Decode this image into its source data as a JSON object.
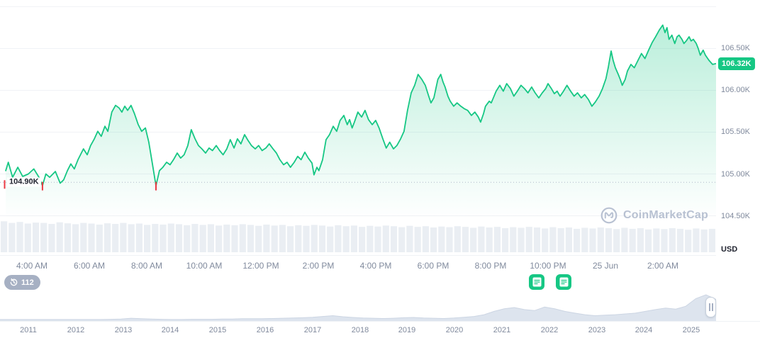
{
  "colors": {
    "accent_green": "#16c784",
    "alert_red": "#ea3943",
    "axis_text": "#808a9d",
    "dark_text": "#222531",
    "grid": "#f0f2f6",
    "dotted_line": "#aeb7c8",
    "volume_fill": "#eaeef3",
    "timeline_fill": "#dde4ee",
    "timeline_stroke": "#ccd5e3"
  },
  "y_axis": {
    "unit_label": "USD",
    "ticks": [
      {
        "price": 106.5,
        "label": "106.50K"
      },
      {
        "price": 106.0,
        "label": "106.00K"
      },
      {
        "price": 105.5,
        "label": "105.50K"
      },
      {
        "price": 105.0,
        "label": "105.00K"
      },
      {
        "price": 104.5,
        "label": "104.50K"
      }
    ],
    "grid_extra": [
      107.0
    ],
    "current_price": {
      "label": "106.32K",
      "value": 106.32
    }
  },
  "low_line": {
    "price": 104.9,
    "label": "104.90K"
  },
  "x_axis": {
    "ticks": [
      {
        "t": 0,
        "label": "4:00 AM"
      },
      {
        "t": 2,
        "label": "6:00 AM"
      },
      {
        "t": 4,
        "label": "8:00 AM"
      },
      {
        "t": 6,
        "label": "10:00 AM"
      },
      {
        "t": 8,
        "label": "12:00 PM"
      },
      {
        "t": 10,
        "label": "2:00 PM"
      },
      {
        "t": 12,
        "label": "4:00 PM"
      },
      {
        "t": 14,
        "label": "6:00 PM"
      },
      {
        "t": 16,
        "label": "8:00 PM"
      },
      {
        "t": 18,
        "label": "10:00 PM"
      },
      {
        "t": 20,
        "label": "25 Jun"
      },
      {
        "t": 22,
        "label": "2:00 AM"
      }
    ]
  },
  "history_badge": {
    "count": "112"
  },
  "event_markers": [
    {
      "t": 17.6
    },
    {
      "t": 18.55
    }
  ],
  "watermark": {
    "text": "CoinMarketCap"
  },
  "chart_data": [
    {
      "type": "line",
      "name": "price_24h",
      "ylabel": "USD",
      "x_unit": "hours since 4:00 AM",
      "t_domain": [
        -1.11,
        23.86
      ],
      "ylim": [
        104.03,
        107.08
      ],
      "unit": "K USD",
      "points": [
        [
          -0.91,
          105.04
        ],
        [
          -0.82,
          105.14
        ],
        [
          -0.67,
          104.96
        ],
        [
          -0.49,
          105.08
        ],
        [
          -0.32,
          104.97
        ],
        [
          -0.12,
          105.0
        ],
        [
          0.07,
          105.06
        ],
        [
          0.25,
          104.96
        ],
        [
          0.37,
          104.86
        ],
        [
          0.49,
          105.0
        ],
        [
          0.62,
          104.96
        ],
        [
          0.82,
          105.03
        ],
        [
          0.99,
          104.89
        ],
        [
          1.11,
          104.93
        ],
        [
          1.24,
          105.04
        ],
        [
          1.36,
          105.12
        ],
        [
          1.48,
          105.06
        ],
        [
          1.61,
          105.17
        ],
        [
          1.8,
          105.3
        ],
        [
          1.93,
          105.23
        ],
        [
          2.05,
          105.34
        ],
        [
          2.18,
          105.42
        ],
        [
          2.3,
          105.51
        ],
        [
          2.42,
          105.45
        ],
        [
          2.55,
          105.57
        ],
        [
          2.65,
          105.51
        ],
        [
          2.79,
          105.74
        ],
        [
          2.92,
          105.82
        ],
        [
          3.04,
          105.79
        ],
        [
          3.14,
          105.74
        ],
        [
          3.24,
          105.81
        ],
        [
          3.34,
          105.76
        ],
        [
          3.46,
          105.82
        ],
        [
          3.58,
          105.72
        ],
        [
          3.71,
          105.59
        ],
        [
          3.83,
          105.51
        ],
        [
          3.96,
          105.55
        ],
        [
          4.08,
          105.38
        ],
        [
          4.2,
          105.13
        ],
        [
          4.33,
          104.86
        ],
        [
          4.45,
          105.04
        ],
        [
          4.57,
          105.08
        ],
        [
          4.7,
          105.14
        ],
        [
          4.82,
          105.11
        ],
        [
          4.94,
          105.17
        ],
        [
          5.07,
          105.25
        ],
        [
          5.19,
          105.19
        ],
        [
          5.31,
          105.23
        ],
        [
          5.44,
          105.34
        ],
        [
          5.56,
          105.53
        ],
        [
          5.69,
          105.42
        ],
        [
          5.81,
          105.34
        ],
        [
          5.93,
          105.3
        ],
        [
          6.06,
          105.25
        ],
        [
          6.18,
          105.31
        ],
        [
          6.3,
          105.28
        ],
        [
          6.43,
          105.34
        ],
        [
          6.55,
          105.28
        ],
        [
          6.67,
          105.23
        ],
        [
          6.8,
          105.3
        ],
        [
          6.92,
          105.41
        ],
        [
          7.05,
          105.31
        ],
        [
          7.17,
          105.42
        ],
        [
          7.29,
          105.36
        ],
        [
          7.42,
          105.47
        ],
        [
          7.54,
          105.4
        ],
        [
          7.66,
          105.34
        ],
        [
          7.79,
          105.3
        ],
        [
          7.91,
          105.34
        ],
        [
          8.03,
          105.28
        ],
        [
          8.16,
          105.31
        ],
        [
          8.28,
          105.36
        ],
        [
          8.41,
          105.3
        ],
        [
          8.53,
          105.25
        ],
        [
          8.65,
          105.17
        ],
        [
          8.78,
          105.11
        ],
        [
          8.9,
          105.14
        ],
        [
          9.02,
          105.08
        ],
        [
          9.15,
          105.14
        ],
        [
          9.27,
          105.21
        ],
        [
          9.39,
          105.17
        ],
        [
          9.52,
          105.26
        ],
        [
          9.64,
          105.19
        ],
        [
          9.77,
          105.13
        ],
        [
          9.84,
          104.99
        ],
        [
          9.94,
          105.08
        ],
        [
          10.01,
          105.04
        ],
        [
          10.14,
          105.17
        ],
        [
          10.26,
          105.41
        ],
        [
          10.38,
          105.47
        ],
        [
          10.51,
          105.57
        ],
        [
          10.63,
          105.51
        ],
        [
          10.75,
          105.64
        ],
        [
          10.88,
          105.7
        ],
        [
          11.0,
          105.59
        ],
        [
          11.08,
          105.65
        ],
        [
          11.17,
          105.55
        ],
        [
          11.25,
          105.62
        ],
        [
          11.37,
          105.74
        ],
        [
          11.5,
          105.68
        ],
        [
          11.62,
          105.76
        ],
        [
          11.74,
          105.65
        ],
        [
          11.87,
          105.59
        ],
        [
          11.99,
          105.64
        ],
        [
          12.11,
          105.55
        ],
        [
          12.24,
          105.42
        ],
        [
          12.36,
          105.31
        ],
        [
          12.48,
          105.38
        ],
        [
          12.61,
          105.3
        ],
        [
          12.73,
          105.34
        ],
        [
          12.86,
          105.42
        ],
        [
          12.98,
          105.51
        ],
        [
          13.1,
          105.76
        ],
        [
          13.23,
          105.97
        ],
        [
          13.35,
          106.06
        ],
        [
          13.47,
          106.19
        ],
        [
          13.6,
          106.13
        ],
        [
          13.72,
          106.06
        ],
        [
          13.84,
          105.93
        ],
        [
          13.92,
          105.85
        ],
        [
          14.02,
          105.91
        ],
        [
          14.09,
          106.02
        ],
        [
          14.16,
          106.13
        ],
        [
          14.26,
          106.19
        ],
        [
          14.34,
          106.1
        ],
        [
          14.41,
          106.04
        ],
        [
          14.51,
          105.93
        ],
        [
          14.59,
          105.87
        ],
        [
          14.71,
          105.81
        ],
        [
          14.83,
          105.85
        ],
        [
          14.96,
          105.81
        ],
        [
          15.08,
          105.78
        ],
        [
          15.2,
          105.76
        ],
        [
          15.33,
          105.7
        ],
        [
          15.45,
          105.74
        ],
        [
          15.57,
          105.68
        ],
        [
          15.65,
          105.62
        ],
        [
          15.75,
          105.72
        ],
        [
          15.82,
          105.81
        ],
        [
          15.95,
          105.87
        ],
        [
          16.02,
          105.85
        ],
        [
          16.12,
          105.93
        ],
        [
          16.19,
          105.99
        ],
        [
          16.32,
          106.06
        ],
        [
          16.44,
          105.99
        ],
        [
          16.56,
          106.08
        ],
        [
          16.69,
          106.02
        ],
        [
          16.81,
          105.93
        ],
        [
          16.93,
          105.99
        ],
        [
          17.06,
          106.06
        ],
        [
          17.18,
          106.02
        ],
        [
          17.3,
          105.97
        ],
        [
          17.43,
          106.04
        ],
        [
          17.55,
          105.97
        ],
        [
          17.68,
          105.91
        ],
        [
          17.8,
          105.97
        ],
        [
          17.92,
          106.02
        ],
        [
          18.0,
          106.08
        ],
        [
          18.12,
          106.02
        ],
        [
          18.22,
          105.96
        ],
        [
          18.32,
          105.99
        ],
        [
          18.42,
          105.93
        ],
        [
          18.54,
          105.99
        ],
        [
          18.66,
          106.06
        ],
        [
          18.79,
          105.99
        ],
        [
          18.91,
          105.93
        ],
        [
          19.03,
          105.97
        ],
        [
          19.16,
          105.91
        ],
        [
          19.28,
          105.95
        ],
        [
          19.41,
          105.89
        ],
        [
          19.53,
          105.81
        ],
        [
          19.65,
          105.86
        ],
        [
          19.78,
          105.93
        ],
        [
          19.9,
          106.02
        ],
        [
          20.02,
          106.14
        ],
        [
          20.1,
          106.27
        ],
        [
          20.2,
          106.47
        ],
        [
          20.27,
          106.36
        ],
        [
          20.35,
          106.27
        ],
        [
          20.45,
          106.19
        ],
        [
          20.52,
          106.13
        ],
        [
          20.59,
          106.06
        ],
        [
          20.69,
          106.13
        ],
        [
          20.77,
          106.23
        ],
        [
          20.89,
          106.31
        ],
        [
          21.01,
          106.27
        ],
        [
          21.14,
          106.36
        ],
        [
          21.26,
          106.44
        ],
        [
          21.38,
          106.38
        ],
        [
          21.51,
          106.48
        ],
        [
          21.63,
          106.57
        ],
        [
          21.75,
          106.64
        ],
        [
          21.88,
          106.72
        ],
        [
          22.0,
          106.78
        ],
        [
          22.08,
          106.69
        ],
        [
          22.15,
          106.75
        ],
        [
          22.22,
          106.61
        ],
        [
          22.32,
          106.66
        ],
        [
          22.42,
          106.56
        ],
        [
          22.5,
          106.64
        ],
        [
          22.57,
          106.66
        ],
        [
          22.67,
          106.61
        ],
        [
          22.74,
          106.56
        ],
        [
          22.82,
          106.59
        ],
        [
          22.92,
          106.64
        ],
        [
          22.99,
          106.59
        ],
        [
          23.07,
          106.61
        ],
        [
          23.17,
          106.56
        ],
        [
          23.24,
          106.5
        ],
        [
          23.31,
          106.42
        ],
        [
          23.41,
          106.48
        ],
        [
          23.49,
          106.42
        ],
        [
          23.61,
          106.36
        ],
        [
          23.74,
          106.31
        ],
        [
          23.86,
          106.32
        ]
      ],
      "low_markers": [
        [
          -0.95,
          104.9
        ],
        [
          0.37,
          104.88
        ],
        [
          4.33,
          104.88
        ]
      ],
      "volume": [
        0.95,
        0.9,
        0.93,
        0.88,
        0.91,
        0.9,
        0.87,
        0.92,
        0.89,
        0.86,
        0.9,
        0.88,
        0.85,
        0.89,
        0.87,
        0.9,
        0.86,
        0.88,
        0.84,
        0.87,
        0.85,
        0.88,
        0.86,
        0.83,
        0.87,
        0.84,
        0.86,
        0.82,
        0.85,
        0.83,
        0.86,
        0.84,
        0.81,
        0.85,
        0.82,
        0.84,
        0.8,
        0.83,
        0.81,
        0.84,
        0.82,
        0.79,
        0.83,
        0.8,
        0.82,
        0.78,
        0.81,
        0.79,
        0.82,
        0.8,
        0.77,
        0.81,
        0.78,
        0.8,
        0.76,
        0.79,
        0.77,
        0.8,
        0.78,
        0.75,
        0.79,
        0.76,
        0.78,
        0.74,
        0.77,
        0.75,
        0.78,
        0.76,
        0.73,
        0.77,
        0.74,
        0.76,
        0.72,
        0.75,
        0.73,
        0.76,
        0.74,
        0.71,
        0.75,
        0.72,
        0.74,
        0.7,
        0.73,
        0.71,
        0.74,
        0.72,
        0.69,
        0.73,
        0.7,
        0.72
      ]
    },
    {
      "type": "area",
      "name": "history_overview",
      "categories": [
        "2011",
        "2012",
        "2013",
        "2014",
        "2015",
        "2016",
        "2017",
        "2018",
        "2019",
        "2020",
        "2021",
        "2022",
        "2023",
        "2024",
        "2025"
      ],
      "values": [
        0.03,
        0.03,
        0.03,
        0.03,
        0.03,
        0.03,
        0.03,
        0.03,
        0.03,
        0.03,
        0.03,
        0.04,
        0.05,
        0.08,
        0.06,
        0.05,
        0.04,
        0.03,
        0.03,
        0.04,
        0.04,
        0.04,
        0.05,
        0.05,
        0.06,
        0.06,
        0.06,
        0.07,
        0.08,
        0.09,
        0.1,
        0.12,
        0.15,
        0.18,
        0.14,
        0.11,
        0.09,
        0.08,
        0.07,
        0.08,
        0.1,
        0.11,
        0.09,
        0.08,
        0.07,
        0.09,
        0.12,
        0.15,
        0.22,
        0.35,
        0.45,
        0.5,
        0.42,
        0.38,
        0.52,
        0.45,
        0.35,
        0.28,
        0.22,
        0.18,
        0.2,
        0.22,
        0.25,
        0.28,
        0.35,
        0.42,
        0.48,
        0.44,
        0.55,
        0.85,
        1.0,
        0.82
      ]
    }
  ]
}
